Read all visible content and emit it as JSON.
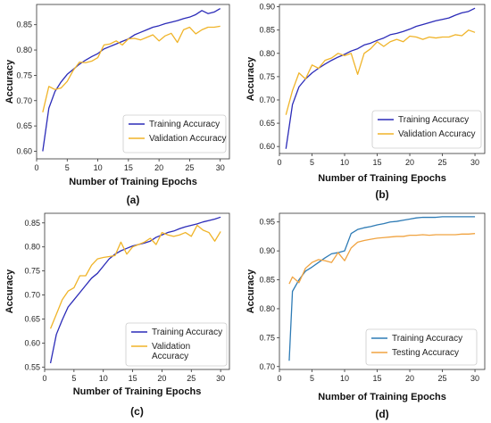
{
  "chart_data": [
    {
      "type": "line",
      "panel_label": "(a)",
      "xlabel": "Number of Training Epochs",
      "ylabel": "Accuracy",
      "xlim": [
        0,
        31.5
      ],
      "ylim": [
        0.585,
        0.89
      ],
      "xticks": [
        0,
        5,
        10,
        15,
        20,
        25,
        30
      ],
      "yticks": [
        0.6,
        0.65,
        0.7,
        0.75,
        0.8,
        0.85
      ],
      "ytick_decimals": 2,
      "legend_position": "bottom-right",
      "legend_lines": [
        [
          "Training Accuracy"
        ],
        [
          "Validation Accuracy"
        ]
      ],
      "x": [
        1,
        2,
        3,
        4,
        5,
        6,
        7,
        8,
        9,
        10,
        11,
        12,
        13,
        14,
        15,
        16,
        17,
        18,
        19,
        20,
        21,
        22,
        23,
        24,
        25,
        26,
        27,
        28,
        29,
        30
      ],
      "series": [
        {
          "name": "Training Accuracy",
          "color": "#2b2bb8",
          "values": [
            0.6,
            0.685,
            0.718,
            0.737,
            0.752,
            0.762,
            0.772,
            0.78,
            0.787,
            0.793,
            0.802,
            0.807,
            0.812,
            0.817,
            0.822,
            0.83,
            0.835,
            0.84,
            0.845,
            0.848,
            0.852,
            0.855,
            0.858,
            0.862,
            0.865,
            0.87,
            0.878,
            0.872,
            0.875,
            0.882
          ]
        },
        {
          "name": "Validation Accuracy",
          "color": "#f0b429",
          "values": [
            0.677,
            0.728,
            0.722,
            0.725,
            0.738,
            0.76,
            0.776,
            0.775,
            0.778,
            0.785,
            0.81,
            0.812,
            0.818,
            0.81,
            0.822,
            0.823,
            0.82,
            0.825,
            0.83,
            0.818,
            0.828,
            0.833,
            0.815,
            0.84,
            0.845,
            0.832,
            0.84,
            0.845,
            0.845,
            0.847
          ]
        }
      ]
    },
    {
      "type": "line",
      "panel_label": "(b)",
      "xlabel": "Number of Training Epochs",
      "ylabel": "Accuracy",
      "xlim": [
        0,
        31.5
      ],
      "ylim": [
        0.585,
        0.905
      ],
      "xticks": [
        0,
        5,
        10,
        15,
        20,
        25,
        30
      ],
      "yticks": [
        0.6,
        0.65,
        0.7,
        0.75,
        0.8,
        0.85,
        0.9
      ],
      "ytick_decimals": 2,
      "legend_position": "bottom-right",
      "legend_lines": [
        [
          "Training Accuracy"
        ],
        [
          "Validation Accuracy"
        ]
      ],
      "x": [
        1,
        2,
        3,
        4,
        5,
        6,
        7,
        8,
        9,
        10,
        11,
        12,
        13,
        14,
        15,
        16,
        17,
        18,
        19,
        20,
        21,
        22,
        23,
        24,
        25,
        26,
        27,
        28,
        29,
        30
      ],
      "series": [
        {
          "name": "Training Accuracy",
          "color": "#2b2bb8",
          "values": [
            0.595,
            0.69,
            0.728,
            0.745,
            0.758,
            0.768,
            0.777,
            0.785,
            0.792,
            0.798,
            0.805,
            0.81,
            0.818,
            0.822,
            0.828,
            0.833,
            0.84,
            0.843,
            0.847,
            0.852,
            0.858,
            0.862,
            0.866,
            0.87,
            0.873,
            0.876,
            0.882,
            0.887,
            0.89,
            0.897
          ]
        },
        {
          "name": "Validation Accuracy",
          "color": "#f0b429",
          "values": [
            0.668,
            0.72,
            0.758,
            0.745,
            0.775,
            0.768,
            0.785,
            0.79,
            0.8,
            0.795,
            0.8,
            0.755,
            0.8,
            0.81,
            0.825,
            0.815,
            0.825,
            0.83,
            0.825,
            0.837,
            0.835,
            0.83,
            0.835,
            0.833,
            0.835,
            0.835,
            0.84,
            0.838,
            0.85,
            0.845
          ]
        }
      ]
    },
    {
      "type": "line",
      "panel_label": "(c)",
      "xlabel": "Number of Training Epochs",
      "ylabel": "Accuracy",
      "xlim": [
        0,
        31.5
      ],
      "ylim": [
        0.545,
        0.87
      ],
      "xticks": [
        0,
        5,
        10,
        15,
        20,
        25,
        30
      ],
      "yticks": [
        0.55,
        0.6,
        0.65,
        0.7,
        0.75,
        0.8,
        0.85
      ],
      "ytick_decimals": 2,
      "legend_position": "bottom-right",
      "legend_lines": [
        [
          "Training Accuracy"
        ],
        [
          "Validation",
          "Accuracy"
        ]
      ],
      "x": [
        1,
        2,
        3,
        4,
        5,
        6,
        7,
        8,
        9,
        10,
        11,
        12,
        13,
        14,
        15,
        16,
        17,
        18,
        19,
        20,
        21,
        22,
        23,
        24,
        25,
        26,
        27,
        28,
        29,
        30
      ],
      "series": [
        {
          "name": "Training Accuracy",
          "color": "#2b2bb8",
          "values": [
            0.558,
            0.618,
            0.648,
            0.675,
            0.69,
            0.705,
            0.72,
            0.735,
            0.745,
            0.76,
            0.775,
            0.785,
            0.792,
            0.797,
            0.802,
            0.805,
            0.808,
            0.812,
            0.82,
            0.825,
            0.83,
            0.833,
            0.838,
            0.842,
            0.845,
            0.848,
            0.852,
            0.855,
            0.858,
            0.862
          ]
        },
        {
          "name": "Validation Accuracy",
          "color": "#f0b429",
          "values": [
            0.63,
            0.66,
            0.69,
            0.708,
            0.715,
            0.74,
            0.74,
            0.762,
            0.775,
            0.778,
            0.78,
            0.782,
            0.81,
            0.785,
            0.8,
            0.805,
            0.81,
            0.818,
            0.805,
            0.83,
            0.825,
            0.822,
            0.825,
            0.83,
            0.822,
            0.845,
            0.835,
            0.83,
            0.812,
            0.832
          ]
        }
      ]
    },
    {
      "type": "line",
      "panel_label": "(d)",
      "xlabel": "Number of Training Epochs",
      "ylabel": "Accuracy",
      "xlim": [
        0,
        31.5
      ],
      "ylim": [
        0.695,
        0.965
      ],
      "xticks": [
        0,
        5,
        10,
        15,
        20,
        25,
        30
      ],
      "yticks": [
        0.7,
        0.75,
        0.8,
        0.85,
        0.9,
        0.95
      ],
      "ytick_decimals": 2,
      "legend_position": "bottom-right",
      "legend_lines": [
        [
          "Training Accuracy"
        ],
        [
          "Testing Accuracy"
        ]
      ],
      "x": [
        1.5,
        2,
        3,
        4,
        5,
        6,
        7,
        8,
        9,
        10,
        11,
        12,
        13,
        14,
        15,
        16,
        17,
        18,
        19,
        20,
        21,
        22,
        23,
        24,
        25,
        26,
        27,
        28,
        29,
        30
      ],
      "series": [
        {
          "name": "Training Accuracy",
          "color": "#2e7bb5",
          "values": [
            0.71,
            0.83,
            0.85,
            0.865,
            0.872,
            0.88,
            0.888,
            0.895,
            0.897,
            0.9,
            0.93,
            0.937,
            0.94,
            0.942,
            0.945,
            0.947,
            0.95,
            0.951,
            0.953,
            0.955,
            0.957,
            0.958,
            0.958,
            0.958,
            0.959,
            0.959,
            0.959,
            0.959,
            0.959,
            0.959
          ]
        },
        {
          "name": "Testing Accuracy",
          "color": "#f0a340",
          "values": [
            0.843,
            0.855,
            0.845,
            0.87,
            0.88,
            0.885,
            0.883,
            0.88,
            0.897,
            0.883,
            0.905,
            0.915,
            0.918,
            0.92,
            0.922,
            0.923,
            0.924,
            0.925,
            0.925,
            0.927,
            0.927,
            0.928,
            0.927,
            0.928,
            0.928,
            0.928,
            0.928,
            0.929,
            0.929,
            0.93
          ]
        }
      ]
    }
  ]
}
